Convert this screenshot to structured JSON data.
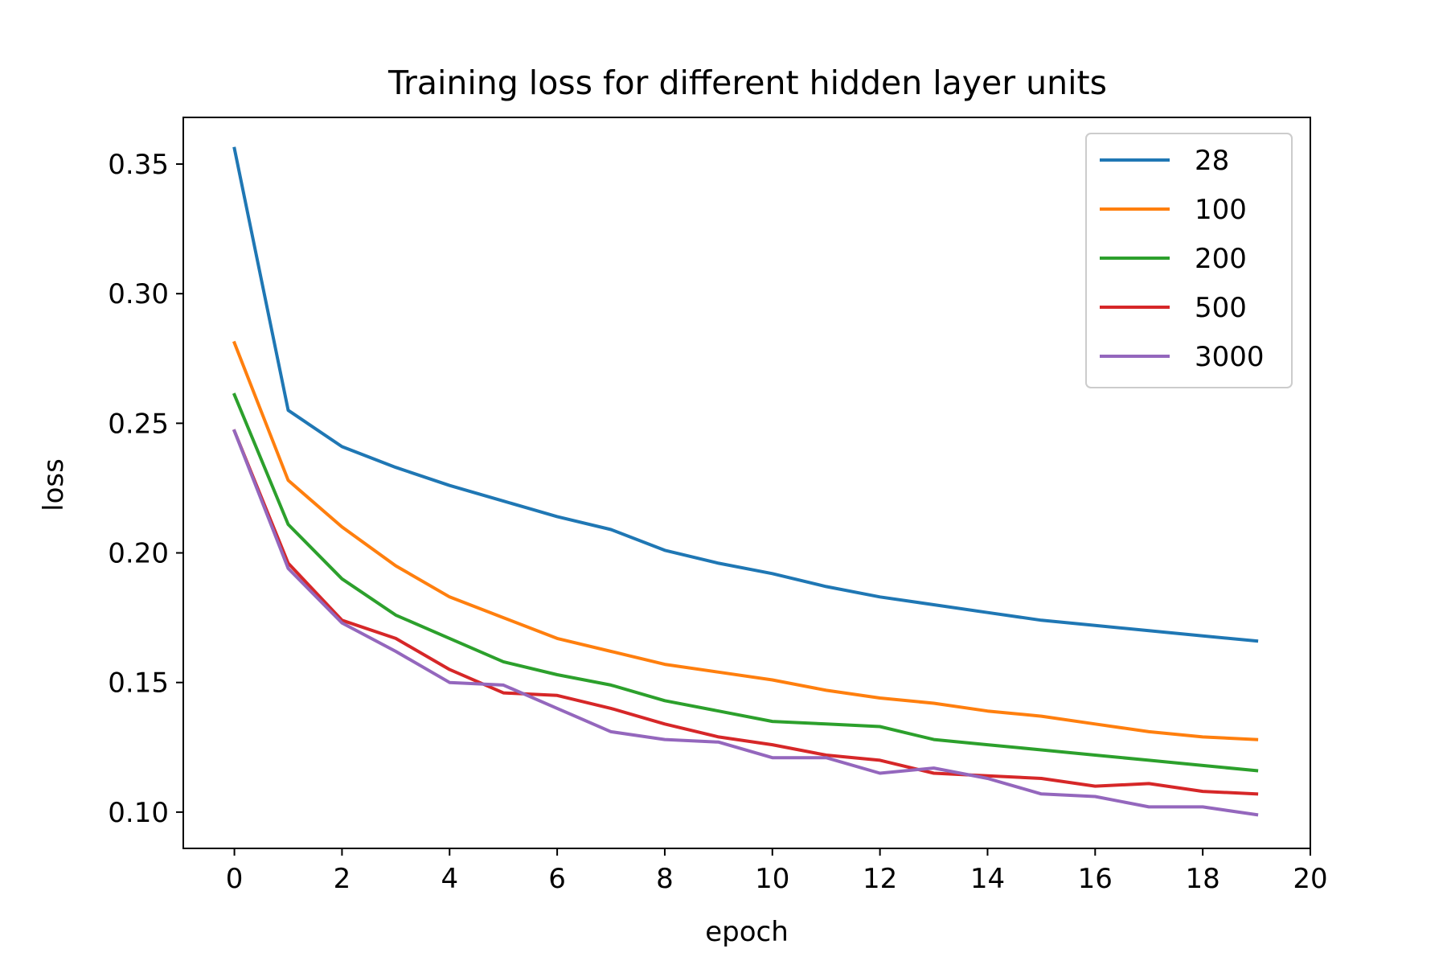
{
  "chart_data": {
    "type": "line",
    "title": "Training loss for different hidden layer units",
    "xlabel": "epoch",
    "ylabel": "loss",
    "xlim": [
      -0.95,
      20
    ],
    "ylim": [
      0.086,
      0.368
    ],
    "xticks": [
      0,
      2,
      4,
      6,
      8,
      10,
      12,
      14,
      16,
      18,
      20
    ],
    "xtick_labels": [
      "0",
      "2",
      "4",
      "6",
      "8",
      "10",
      "12",
      "14",
      "16",
      "18",
      "20"
    ],
    "yticks": [
      0.1,
      0.15,
      0.2,
      0.25,
      0.3,
      0.35
    ],
    "ytick_labels": [
      "0.10",
      "0.15",
      "0.20",
      "0.25",
      "0.30",
      "0.35"
    ],
    "grid": false,
    "legend_position": "top-right",
    "x": [
      0,
      1,
      2,
      3,
      4,
      5,
      6,
      7,
      8,
      9,
      10,
      11,
      12,
      13,
      14,
      15,
      16,
      17,
      18,
      19
    ],
    "series": [
      {
        "name": "28",
        "color": "#1f77b4",
        "values": [
          0.356,
          0.255,
          0.241,
          0.233,
          0.226,
          0.22,
          0.214,
          0.209,
          0.201,
          0.196,
          0.192,
          0.187,
          0.183,
          0.18,
          0.177,
          0.174,
          0.172,
          0.17,
          0.168,
          0.166
        ]
      },
      {
        "name": "100",
        "color": "#ff7f0e",
        "values": [
          0.281,
          0.228,
          0.21,
          0.195,
          0.183,
          0.175,
          0.167,
          0.162,
          0.157,
          0.154,
          0.151,
          0.147,
          0.144,
          0.142,
          0.139,
          0.137,
          0.134,
          0.131,
          0.129,
          0.128
        ]
      },
      {
        "name": "200",
        "color": "#2ca02c",
        "values": [
          0.261,
          0.211,
          0.19,
          0.176,
          0.167,
          0.158,
          0.153,
          0.149,
          0.143,
          0.139,
          0.135,
          0.134,
          0.133,
          0.128,
          0.126,
          0.124,
          0.122,
          0.12,
          0.118,
          0.116
        ]
      },
      {
        "name": "500",
        "color": "#d62728",
        "values": [
          0.247,
          0.196,
          0.174,
          0.167,
          0.155,
          0.146,
          0.145,
          0.14,
          0.134,
          0.129,
          0.126,
          0.122,
          0.12,
          0.115,
          0.114,
          0.113,
          0.11,
          0.111,
          0.108,
          0.107
        ]
      },
      {
        "name": "3000",
        "color": "#9467bd",
        "values": [
          0.247,
          0.194,
          0.173,
          0.162,
          0.15,
          0.149,
          0.14,
          0.131,
          0.128,
          0.127,
          0.121,
          0.121,
          0.115,
          0.117,
          0.113,
          0.107,
          0.106,
          0.102,
          0.102,
          0.099
        ]
      }
    ]
  }
}
